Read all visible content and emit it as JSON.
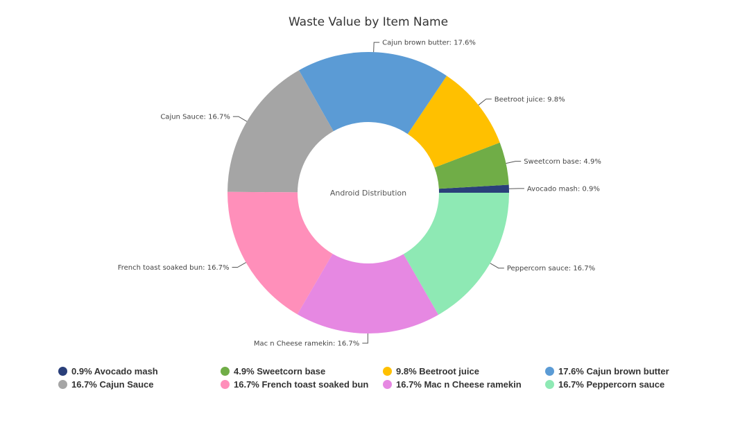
{
  "chart_data": {
    "type": "pie",
    "style": "donut",
    "title": "Waste Value by Item Name",
    "center_label": "Android Distribution",
    "legend_position": "bottom",
    "slices": [
      {
        "name": "Avocado mash",
        "value": 0.9,
        "color": "#2a3f7a",
        "label": "Avocado mash: 0.9%",
        "legend": "0.9% Avocado mash"
      },
      {
        "name": "Sweetcorn base",
        "value": 4.9,
        "color": "#70ad47",
        "label": "Sweetcorn base: 4.9%",
        "legend": "4.9% Sweetcorn base"
      },
      {
        "name": "Beetroot juice",
        "value": 9.8,
        "color": "#ffc000",
        "label": "Beetroot juice: 9.8%",
        "legend": "9.8% Beetroot juice"
      },
      {
        "name": "Cajun brown butter",
        "value": 17.6,
        "color": "#5b9bd5",
        "label": "Cajun brown butter: 17.6%",
        "legend": "17.6% Cajun brown butter"
      },
      {
        "name": "Cajun Sauce",
        "value": 16.7,
        "color": "#a5a5a5",
        "label": "Cajun Sauce: 16.7%",
        "legend": "16.7% Cajun Sauce"
      },
      {
        "name": "French toast soaked bun",
        "value": 16.7,
        "color": "#ff8fba",
        "label": "French toast soaked bun: 16.7%",
        "legend": "16.7% French toast soaked bun"
      },
      {
        "name": "Mac n Cheese ramekin",
        "value": 16.7,
        "color": "#e688e2",
        "label": "Mac n Cheese ramekin: 16.7%",
        "legend": "16.7% Mac n Cheese ramekin"
      },
      {
        "name": "Peppercorn sauce",
        "value": 16.7,
        "color": "#8ee9b4",
        "label": "Peppercorn sauce: 16.7%",
        "legend": "16.7% Peppercorn sauce"
      }
    ]
  }
}
